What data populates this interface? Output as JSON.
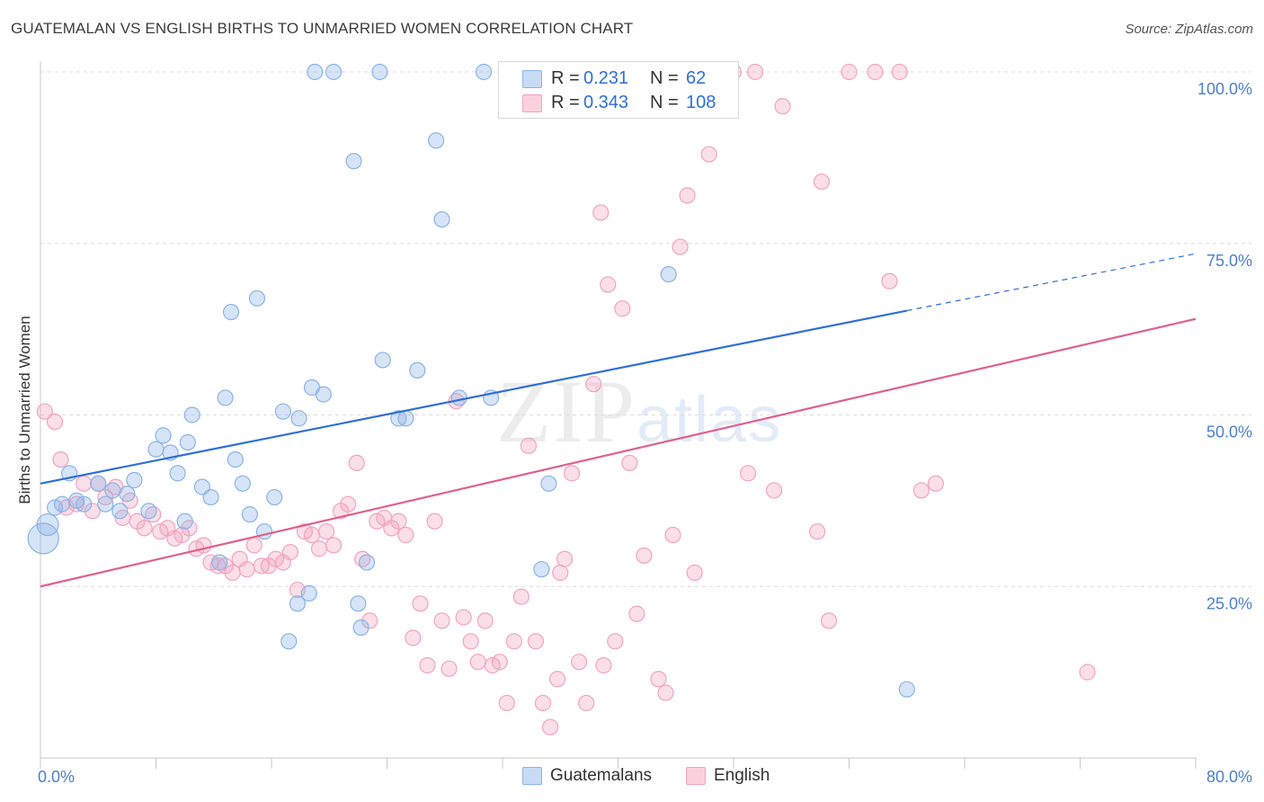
{
  "title": "GUATEMALAN VS ENGLISH BIRTHS TO UNMARRIED WOMEN CORRELATION CHART",
  "source": "Source: ZipAtlas.com",
  "watermark": {
    "zip": "ZIP",
    "atlas": "atlas"
  },
  "legend": {
    "guatemalans": {
      "r_label": "R =",
      "r_value": "0.231",
      "n_label": "N =",
      "n_value": "62"
    },
    "english": {
      "r_label": "R =",
      "r_value": "0.343",
      "n_label": "N =",
      "n_value": "108"
    }
  },
  "bottom_legend": {
    "guatemalans": "Guatemalans",
    "english": "English"
  },
  "chart_data": {
    "type": "scatter",
    "title": "GUATEMALAN VS ENGLISH BIRTHS TO UNMARRIED WOMEN CORRELATION CHART",
    "xlabel": "",
    "ylabel": "Births to Unmarried Women",
    "xlim": [
      0,
      80
    ],
    "ylim": [
      0,
      100
    ],
    "x_tick_labels": [
      "0.0%",
      "80.0%"
    ],
    "y_tick_values": [
      25,
      50,
      75,
      100
    ],
    "y_tick_labels": [
      "25.0%",
      "50.0%",
      "75.0%",
      "100.0%"
    ],
    "grid": "horizontal dashed",
    "legend_placement": "top-center",
    "colors": {
      "guatemalans": "#8ab3e8",
      "english": "#f2a4bd",
      "guatemalans_line": "#2f6fd6",
      "english_line": "#e0608c"
    },
    "series": [
      {
        "name": "Guatemalans",
        "r": 0.231,
        "n": 62,
        "trend": {
          "x": [
            0,
            60,
            80
          ],
          "y": [
            40.0,
            65.2,
            73.5
          ],
          "dashed_from_x": 60
        },
        "points": [
          [
            0.2,
            32.0,
            3
          ],
          [
            0.5,
            34.0,
            2
          ],
          [
            1.0,
            36.5,
            1
          ],
          [
            1.5,
            37.0,
            1
          ],
          [
            2.0,
            41.5,
            1
          ],
          [
            2.5,
            37.5,
            1
          ],
          [
            3.0,
            37.0,
            1
          ],
          [
            4.0,
            40.0,
            1
          ],
          [
            4.5,
            37.0,
            1
          ],
          [
            5.0,
            39.0,
            1
          ],
          [
            5.5,
            36.0,
            1
          ],
          [
            6.0,
            38.5,
            1
          ],
          [
            6.5,
            40.5,
            1
          ],
          [
            7.5,
            36.0,
            1
          ],
          [
            8.0,
            45.0,
            1
          ],
          [
            8.5,
            47.0,
            1
          ],
          [
            9.0,
            44.5,
            1
          ],
          [
            9.5,
            41.5,
            1
          ],
          [
            10.0,
            34.5,
            1
          ],
          [
            10.2,
            46.0,
            1
          ],
          [
            10.5,
            50.0,
            1
          ],
          [
            11.2,
            39.5,
            1
          ],
          [
            11.8,
            38.0,
            1
          ],
          [
            12.4,
            28.5,
            1
          ],
          [
            12.8,
            52.5,
            1
          ],
          [
            13.2,
            65.0,
            1
          ],
          [
            13.5,
            43.5,
            1
          ],
          [
            14.0,
            40.0,
            1
          ],
          [
            14.5,
            35.5,
            1
          ],
          [
            15.0,
            67.0,
            1
          ],
          [
            15.5,
            33.0,
            1
          ],
          [
            16.2,
            38.0,
            1
          ],
          [
            16.8,
            50.5,
            1
          ],
          [
            17.2,
            17.0,
            1
          ],
          [
            17.8,
            22.5,
            1
          ],
          [
            17.9,
            49.5,
            1
          ],
          [
            18.6,
            24.0,
            1
          ],
          [
            18.8,
            54.0,
            1
          ],
          [
            19.6,
            53.0,
            1
          ],
          [
            19.0,
            100.0,
            1
          ],
          [
            20.3,
            100.0,
            1
          ],
          [
            21.7,
            87.0,
            1
          ],
          [
            22.0,
            22.5,
            1
          ],
          [
            22.2,
            19.0,
            1
          ],
          [
            22.6,
            28.5,
            1
          ],
          [
            23.5,
            100.0,
            1
          ],
          [
            23.7,
            58.0,
            1
          ],
          [
            24.8,
            49.5,
            1
          ],
          [
            25.3,
            49.5,
            1
          ],
          [
            26.1,
            56.5,
            1
          ],
          [
            27.4,
            90.0,
            1
          ],
          [
            27.8,
            78.5,
            1
          ],
          [
            29.0,
            52.5,
            1
          ],
          [
            30.7,
            100.0,
            1
          ],
          [
            31.2,
            52.5,
            1
          ],
          [
            34.7,
            27.5,
            1
          ],
          [
            35.2,
            40.0,
            1
          ],
          [
            43.5,
            70.5,
            1
          ],
          [
            60.0,
            10.0,
            1
          ]
        ]
      },
      {
        "name": "English",
        "r": 0.343,
        "n": 108,
        "trend": {
          "x": [
            0,
            80
          ],
          "y": [
            25.0,
            64.0
          ]
        },
        "points": [
          [
            0.3,
            50.5
          ],
          [
            1.0,
            49.0
          ],
          [
            1.4,
            43.5
          ],
          [
            1.8,
            36.5
          ],
          [
            2.5,
            37.0
          ],
          [
            3.0,
            40.0
          ],
          [
            3.6,
            36.0
          ],
          [
            4.0,
            40.0
          ],
          [
            4.5,
            38.0
          ],
          [
            5.2,
            39.5
          ],
          [
            5.7,
            35.0
          ],
          [
            6.2,
            37.5
          ],
          [
            6.7,
            34.5
          ],
          [
            7.2,
            33.5
          ],
          [
            7.8,
            35.5
          ],
          [
            8.3,
            33.0
          ],
          [
            8.8,
            33.5
          ],
          [
            9.3,
            32.0
          ],
          [
            9.8,
            32.5
          ],
          [
            10.3,
            33.5
          ],
          [
            10.8,
            30.5
          ],
          [
            11.3,
            31.0
          ],
          [
            11.8,
            28.5
          ],
          [
            12.3,
            28.0
          ],
          [
            12.8,
            28.0
          ],
          [
            13.3,
            27.0
          ],
          [
            13.8,
            29.0
          ],
          [
            14.3,
            27.5
          ],
          [
            14.8,
            31.0
          ],
          [
            15.3,
            28.0
          ],
          [
            15.8,
            28.0
          ],
          [
            16.3,
            29.0
          ],
          [
            16.8,
            28.5
          ],
          [
            17.3,
            30.0
          ],
          [
            17.8,
            24.5
          ],
          [
            18.3,
            33.0
          ],
          [
            18.8,
            32.5
          ],
          [
            19.3,
            30.5
          ],
          [
            19.8,
            33.0
          ],
          [
            20.3,
            31.0
          ],
          [
            20.8,
            36.0
          ],
          [
            21.3,
            37.0
          ],
          [
            21.9,
            43.0
          ],
          [
            22.3,
            29.0
          ],
          [
            22.8,
            20.0
          ],
          [
            23.3,
            34.5
          ],
          [
            23.8,
            35.0
          ],
          [
            24.3,
            33.5
          ],
          [
            24.8,
            34.5
          ],
          [
            25.3,
            32.5
          ],
          [
            25.8,
            17.5
          ],
          [
            26.3,
            22.5
          ],
          [
            26.8,
            13.5
          ],
          [
            27.3,
            34.5
          ],
          [
            27.8,
            20.0
          ],
          [
            28.3,
            13.0
          ],
          [
            28.8,
            52.0
          ],
          [
            29.3,
            20.5
          ],
          [
            29.8,
            17.0
          ],
          [
            30.3,
            14.0
          ],
          [
            30.8,
            20.0
          ],
          [
            31.3,
            13.5
          ],
          [
            31.8,
            14.0
          ],
          [
            32.3,
            8.0
          ],
          [
            32.8,
            17.0
          ],
          [
            33.3,
            23.5
          ],
          [
            33.8,
            45.5
          ],
          [
            34.3,
            17.0
          ],
          [
            34.8,
            8.0
          ],
          [
            35.3,
            4.5
          ],
          [
            35.8,
            11.5
          ],
          [
            36.3,
            29.0
          ],
          [
            36.8,
            41.5
          ],
          [
            37.3,
            14.0
          ],
          [
            37.8,
            8.0
          ],
          [
            38.3,
            54.5
          ],
          [
            38.8,
            79.5
          ],
          [
            39.3,
            69.0
          ],
          [
            39.8,
            17.0
          ],
          [
            40.3,
            65.5
          ],
          [
            40.8,
            43.0
          ],
          [
            41.3,
            21.0
          ],
          [
            41.8,
            29.5
          ],
          [
            42.3,
            100.0
          ],
          [
            42.8,
            11.5
          ],
          [
            43.3,
            9.5
          ],
          [
            43.8,
            32.5
          ],
          [
            44.3,
            74.5
          ],
          [
            44.8,
            82.0
          ],
          [
            45.3,
            27.0
          ],
          [
            46.3,
            88.0
          ],
          [
            48.0,
            100.0
          ],
          [
            49.5,
            100.0
          ],
          [
            49.0,
            41.5
          ],
          [
            50.8,
            39.0
          ],
          [
            51.4,
            95.0
          ],
          [
            53.8,
            33.0
          ],
          [
            54.1,
            84.0
          ],
          [
            54.6,
            20.0
          ],
          [
            56.0,
            100.0
          ],
          [
            57.8,
            100.0
          ],
          [
            58.8,
            69.5
          ],
          [
            59.5,
            100.0
          ],
          [
            61.0,
            39.0
          ],
          [
            62.0,
            40.0
          ],
          [
            72.5,
            12.5
          ],
          [
            36.0,
            27.0
          ],
          [
            39.0,
            13.5
          ]
        ]
      }
    ]
  }
}
